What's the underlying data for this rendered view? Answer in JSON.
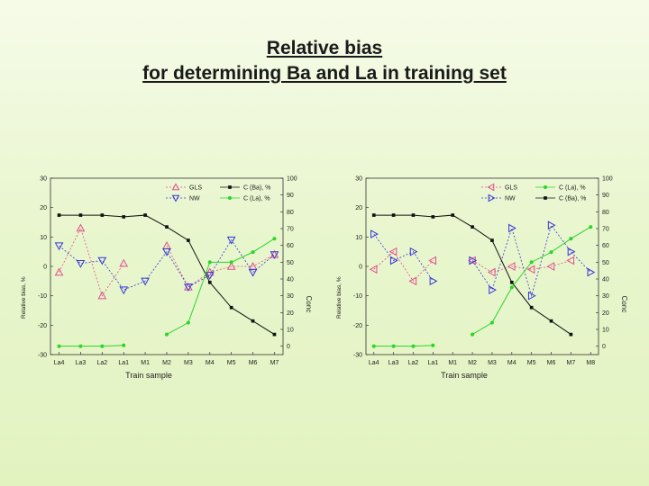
{
  "slide": {
    "title_line1": "Relative bias",
    "title_line2": "for determining Ba and La in training set"
  },
  "colors": {
    "gls": "#e0508a",
    "nw": "#3434d8",
    "ba": "#111111",
    "la": "#2bd62b"
  },
  "chart_data": [
    {
      "type": "line",
      "xlabel": "Train sample",
      "ylabel": "Relative bias, %",
      "y2label": "Conc",
      "categories": [
        "La4",
        "La3",
        "La2",
        "La1",
        "M1",
        "M2",
        "M3",
        "M4",
        "M5",
        "M6",
        "M7"
      ],
      "ylim": [
        -30,
        30
      ],
      "yticks": [
        -30,
        -20,
        -10,
        0,
        10,
        20,
        30
      ],
      "ytick_labels": [
        "-30",
        "-20",
        "-10",
        "0",
        "10",
        "20",
        "30"
      ],
      "y2lim": [
        -5,
        100
      ],
      "y2ticks": [
        0,
        10,
        20,
        30,
        40,
        50,
        60,
        70,
        80,
        90,
        100
      ],
      "legend": {
        "placement": "top",
        "entries": [
          {
            "key": "gls",
            "label": "GLS",
            "marker": "triangle-up"
          },
          {
            "key": "nw",
            "label": "NW",
            "marker": "triangle-down"
          },
          {
            "key": "ba",
            "label": "C (Ba), %",
            "marker": "square"
          },
          {
            "key": "la",
            "label": "C (La), %",
            "marker": "circle"
          }
        ]
      },
      "series": [
        {
          "key": "gls",
          "axis": "left",
          "marker": "triangle-up",
          "dashed": true,
          "values": [
            -2,
            13,
            -10,
            1,
            null,
            7,
            -7,
            -2,
            0,
            0,
            4
          ]
        },
        {
          "key": "nw",
          "axis": "left",
          "marker": "triangle-down",
          "dashed": true,
          "values": [
            7,
            1,
            2,
            -8,
            -5,
            5,
            -7,
            -3,
            9,
            -2,
            4
          ]
        },
        {
          "key": "ba",
          "axis": "right",
          "marker": "square",
          "dashed": false,
          "values": [
            78,
            78,
            78,
            77,
            78,
            71,
            63,
            38,
            23,
            15,
            7
          ]
        },
        {
          "key": "la",
          "axis": "right",
          "marker": "circle",
          "dashed": false,
          "values": [
            0,
            0,
            0,
            0.5,
            null,
            7,
            14,
            50,
            50,
            56,
            64
          ]
        }
      ]
    },
    {
      "type": "line",
      "xlabel": "Train sample",
      "ylabel": "Relative bias, %",
      "y2label": "Conc",
      "categories": [
        "La4",
        "La3",
        "La2",
        "La1",
        "M1",
        "M2",
        "M3",
        "M4",
        "M5",
        "M6",
        "M7",
        "M8"
      ],
      "ylim": [
        -30,
        30
      ],
      "yticks": [
        -30,
        -20,
        -10,
        0,
        10,
        20,
        30
      ],
      "ytick_labels": [
        "-30",
        "-20",
        "-10",
        "0",
        "10",
        "20",
        "30"
      ],
      "y2lim": [
        -5,
        100
      ],
      "y2ticks": [
        0,
        10,
        20,
        30,
        40,
        50,
        60,
        70,
        80,
        90,
        100
      ],
      "legend": {
        "placement": "top",
        "entries": [
          {
            "key": "gls",
            "label": "GLS",
            "marker": "triangle-left"
          },
          {
            "key": "nw",
            "label": "NW",
            "marker": "triangle-right"
          },
          {
            "key": "la",
            "label": "C (La), %",
            "marker": "circle"
          },
          {
            "key": "ba",
            "label": "C (Ba), %",
            "marker": "square"
          }
        ]
      },
      "series": [
        {
          "key": "gls",
          "axis": "left",
          "marker": "triangle-left",
          "dashed": true,
          "values": [
            -1,
            5,
            -5,
            2,
            null,
            2,
            -2,
            0,
            -1,
            0,
            2,
            null
          ]
        },
        {
          "key": "nw",
          "axis": "left",
          "marker": "triangle-right",
          "dashed": true,
          "values": [
            11,
            2,
            5,
            -5,
            null,
            2,
            -8,
            13,
            -10,
            14,
            5,
            -2
          ]
        },
        {
          "key": "ba",
          "axis": "right",
          "marker": "square",
          "dashed": false,
          "values": [
            78,
            78,
            78,
            77,
            78,
            71,
            63,
            38,
            23,
            15,
            7,
            null
          ]
        },
        {
          "key": "la",
          "axis": "right",
          "marker": "circle",
          "dashed": false,
          "values": [
            0,
            0,
            0,
            0.5,
            null,
            7,
            14,
            35,
            50,
            56,
            64,
            71
          ]
        }
      ]
    }
  ]
}
